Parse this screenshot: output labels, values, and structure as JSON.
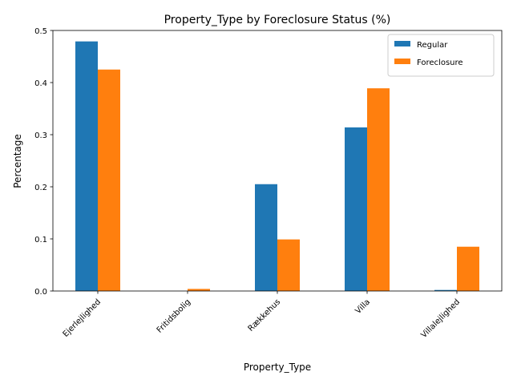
{
  "chart_data": {
    "type": "bar",
    "title": "Property_Type by Foreclosure Status (%)",
    "xlabel": "Property_Type",
    "ylabel": "Percentage",
    "categories": [
      "Ejerlejlighed",
      "Fritidsbolig",
      "Rækkehus",
      "Villa",
      "Villalejlighed"
    ],
    "series": [
      {
        "name": "Regular",
        "color": "#1f77b4",
        "values": [
          0.479,
          0.0,
          0.205,
          0.314,
          0.002
        ]
      },
      {
        "name": "Foreclosure",
        "color": "#ff7f0e",
        "values": [
          0.425,
          0.004,
          0.099,
          0.389,
          0.085
        ]
      }
    ],
    "ylim": [
      0.0,
      0.5
    ],
    "yticks": [
      "0.0",
      "0.1",
      "0.2",
      "0.3",
      "0.4",
      "0.5"
    ],
    "grid": false,
    "legend_position": "top-right"
  }
}
